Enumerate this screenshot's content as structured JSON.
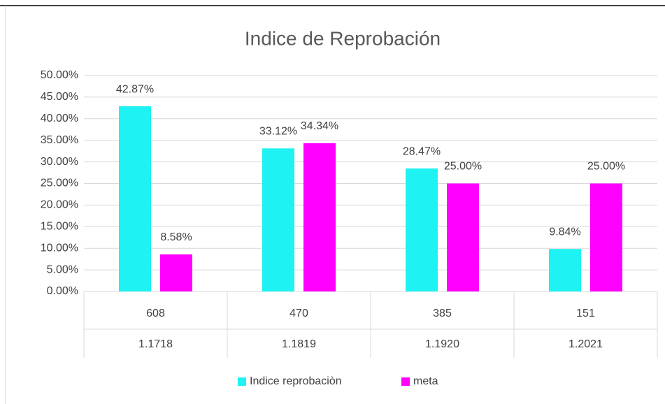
{
  "chart_data": {
    "type": "bar",
    "title": "Indice de Reprobación",
    "categories": [
      "608",
      "470",
      "385",
      "151"
    ],
    "categories_level2": [
      "1.1718",
      "1.1819",
      "1.1920",
      "1.2021"
    ],
    "series": [
      {
        "name": "Indice reprobaciòn",
        "color": "#1ff2f2",
        "values": [
          42.87,
          33.12,
          28.47,
          9.84
        ],
        "value_labels": [
          "42.87%",
          "33.12%",
          "28.47%",
          "9.84%"
        ]
      },
      {
        "name": "meta",
        "color": "#ff00ff",
        "values": [
          8.58,
          34.34,
          25,
          25
        ],
        "value_labels": [
          "8.58%",
          "34.34%",
          "25.00%",
          "25.00%"
        ]
      }
    ],
    "ylim": [
      0,
      50
    ],
    "yticks": [
      {
        "value": 0,
        "label": "0.00%"
      },
      {
        "value": 5,
        "label": "5.00%"
      },
      {
        "value": 10,
        "label": "10.00%"
      },
      {
        "value": 15,
        "label": "15.00%"
      },
      {
        "value": 20,
        "label": "20.00%"
      },
      {
        "value": 25,
        "label": "25.00%"
      },
      {
        "value": 30,
        "label": "30.00%"
      },
      {
        "value": 35,
        "label": "35.00%"
      },
      {
        "value": 40,
        "label": "40.00%"
      },
      {
        "value": 45,
        "label": "45.00%"
      },
      {
        "value": 50,
        "label": "50.00%"
      }
    ],
    "grid": true,
    "legend": "bottom"
  }
}
